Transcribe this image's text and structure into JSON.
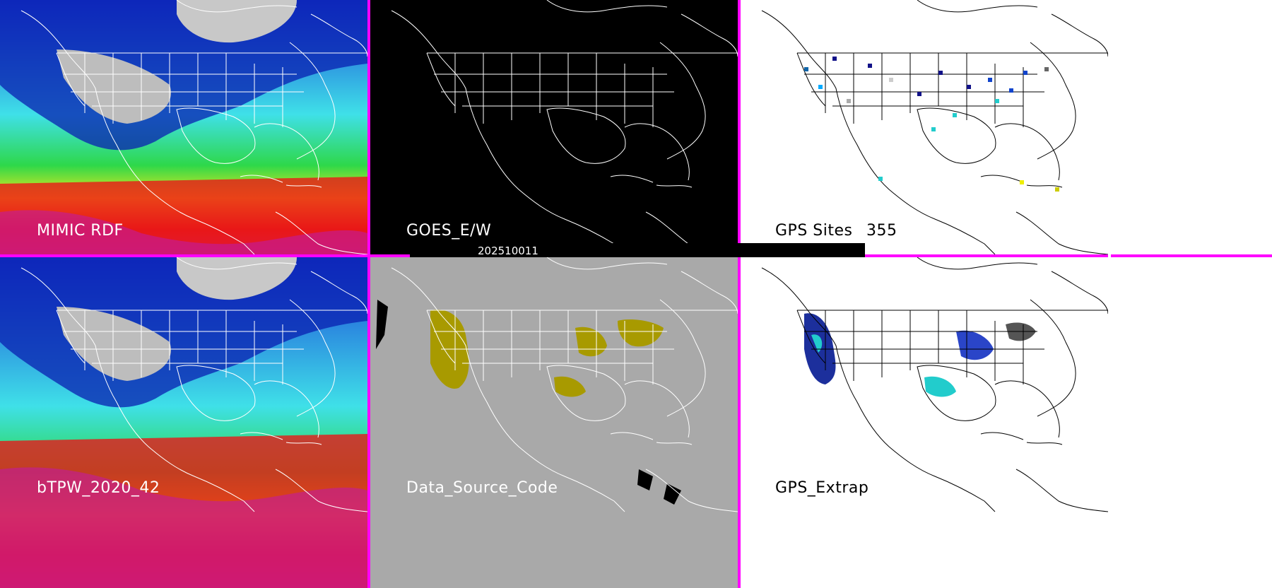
{
  "panels": [
    {
      "id": "mimic",
      "label": "MIMIC RDF"
    },
    {
      "id": "goes",
      "label": "GOES_E/W"
    },
    {
      "id": "gps-sites",
      "label": "GPS Sites",
      "count": "355"
    },
    {
      "id": "btpw",
      "label": "bTPW_2020_42"
    },
    {
      "id": "data-source",
      "label": "Data_Source_Code"
    },
    {
      "id": "gps-extrap",
      "label": "GPS_Extrap"
    }
  ],
  "date_stamp": "202510011",
  "colors": {
    "separator": "#ff00ff",
    "goes_bg": "#000000",
    "data_source_bg": "#a9a9a9",
    "data_source_fill": "#a89a00",
    "gps_bg": "#ffffff"
  }
}
